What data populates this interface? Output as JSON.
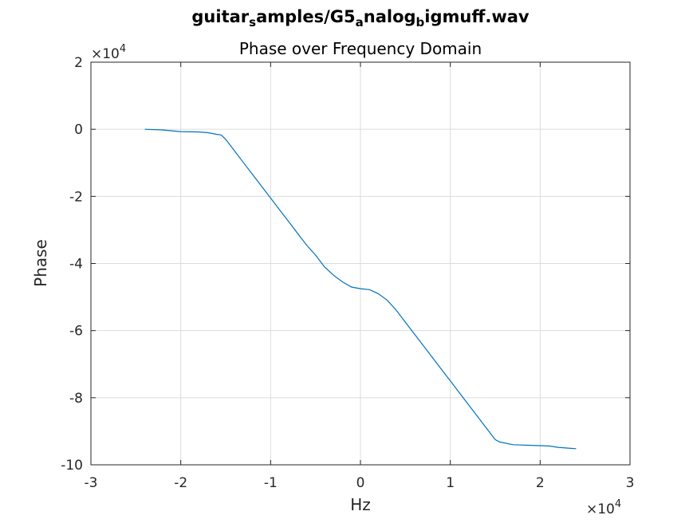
{
  "chart_data": {
    "type": "line",
    "title": "guitar_samples/G5_analog_bigmuff.wav",
    "title_parts": [
      {
        "text": "guitar",
        "sub": false
      },
      {
        "text": "s",
        "sub": true
      },
      {
        "text": "amples/G5",
        "sub": false
      },
      {
        "text": "a",
        "sub": true
      },
      {
        "text": "nalog",
        "sub": false
      },
      {
        "text": "b",
        "sub": true
      },
      {
        "text": "igmuff.wav",
        "sub": false
      }
    ],
    "subtitle": "Phase over Frequency Domain",
    "xlabel": "Hz",
    "ylabel": "Phase",
    "xlim": [
      -30000,
      30000
    ],
    "ylim": [
      -100000,
      20000
    ],
    "x_ticks": [
      -30000,
      -20000,
      -10000,
      0,
      10000,
      20000,
      30000
    ],
    "x_tick_labels": [
      "-3",
      "-2",
      "-1",
      "0",
      "1",
      "2",
      "3"
    ],
    "y_ticks": [
      -100000,
      -80000,
      -60000,
      -40000,
      -20000,
      0,
      20000
    ],
    "y_tick_labels": [
      "-10",
      "-8",
      "-6",
      "-4",
      "-2",
      "0",
      "2"
    ],
    "x_exponent": {
      "base": "×10",
      "power": "4"
    },
    "y_exponent": {
      "base": "×10",
      "power": "4"
    },
    "grid": true,
    "line_color": "#0072bd",
    "series": [
      {
        "x": [
          -24000,
          -22000,
          -20000,
          -18000,
          -17000,
          -16000,
          -15500,
          -15000,
          -14000,
          -13000,
          -12000,
          -11000,
          -10000,
          -9000,
          -8000,
          -7000,
          -6000,
          -5000,
          -4000,
          -3000,
          -2000,
          -1000,
          0,
          1000,
          2000,
          3000,
          4000,
          5000,
          6000,
          7000,
          8000,
          9000,
          10000,
          11000,
          12000,
          13000,
          14000,
          15000,
          15500,
          17000,
          19000,
          21000,
          22000,
          23000,
          24000
        ],
        "y": [
          0,
          -200,
          -700,
          -800,
          -1000,
          -1500,
          -1700,
          -3000,
          -6500,
          -10000,
          -13500,
          -17000,
          -20500,
          -24000,
          -27500,
          -31000,
          -34500,
          -37500,
          -41000,
          -43500,
          -45500,
          -47000,
          -47500,
          -47800,
          -49000,
          -51000,
          -54000,
          -57500,
          -61000,
          -64500,
          -68000,
          -71500,
          -75000,
          -78500,
          -82000,
          -85500,
          -89000,
          -92500,
          -93200,
          -94000,
          -94200,
          -94400,
          -94800,
          -95000,
          -95200
        ]
      }
    ]
  }
}
